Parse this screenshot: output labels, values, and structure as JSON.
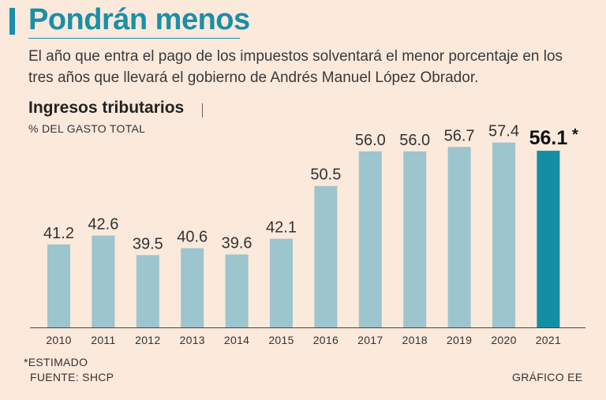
{
  "header": {
    "title": "Pondrán menos",
    "intro": "El año que entra el pago de los impuestos solventará el menor porcentaje en los tres años que llevará el gobierno de Andrés Manuel López Obrador."
  },
  "chart_data": {
    "type": "bar",
    "title": "Ingresos tributarios",
    "subtitle": "% DEL GASTO TOTAL",
    "categories": [
      "2010",
      "2011",
      "2012",
      "2013",
      "2014",
      "2015",
      "2016",
      "2017",
      "2018",
      "2019",
      "2020",
      "2021"
    ],
    "values": [
      41.2,
      42.6,
      39.5,
      40.6,
      39.6,
      42.1,
      50.5,
      56.0,
      56.0,
      56.7,
      57.4,
      56.1
    ],
    "value_labels": [
      "41.2",
      "42.6",
      "39.5",
      "40.6",
      "39.6",
      "42.1",
      "50.5",
      "56.0",
      "56.0",
      "56.7",
      "57.4",
      "56.1"
    ],
    "highlight_index": 11,
    "highlight_suffix": "*",
    "ylim": [
      28,
      60
    ],
    "grid": false,
    "xlabel": "",
    "ylabel": "",
    "colors": {
      "bar": "#9cc5cd",
      "highlight": "#138ea3",
      "baseline": "#444444"
    }
  },
  "footer": {
    "note": "*ESTIMADO",
    "source": "FUENTE: SHCP",
    "credit": "GRÁFICO EE"
  },
  "colors": {
    "background": "#fbe9dc",
    "accent": "#1a8fa6"
  }
}
